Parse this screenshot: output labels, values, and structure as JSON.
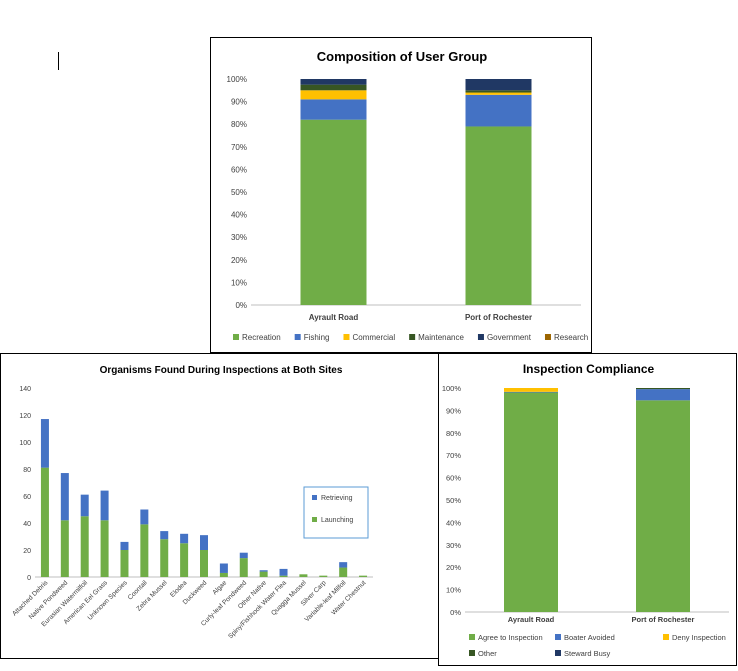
{
  "chart_data": [
    {
      "type": "bar",
      "stacked": true,
      "percent": true,
      "title": "Composition of User Group",
      "xlabel": "",
      "ylabel": "",
      "ylim": [
        0,
        100
      ],
      "yticks": [
        "0%",
        "10%",
        "20%",
        "30%",
        "40%",
        "50%",
        "60%",
        "70%",
        "80%",
        "90%",
        "100%"
      ],
      "categories": [
        "Ayrault Road",
        "Port of Rochester"
      ],
      "series": [
        {
          "name": "Recreation",
          "color": "#70ad47",
          "values": [
            82,
            79
          ]
        },
        {
          "name": "Fishing",
          "color": "#4472c4",
          "values": [
            9,
            14
          ]
        },
        {
          "name": "Commercial",
          "color": "#ffc000",
          "values": [
            4,
            1
          ]
        },
        {
          "name": "Maintenance",
          "color": "#375623",
          "values": [
            2.5,
            1
          ]
        },
        {
          "name": "Government",
          "color": "#203864",
          "values": [
            2.5,
            5
          ]
        },
        {
          "name": "Research",
          "color": "#9c6500",
          "values": [
            0,
            0
          ]
        }
      ],
      "legend": "bottom",
      "grid": false
    },
    {
      "type": "bar",
      "stacked": true,
      "title": "Organisms Found During Inspections at Both Sites",
      "xlabel": "",
      "ylabel": "",
      "ylim": [
        0,
        140
      ],
      "yticks": [
        "0",
        "20",
        "40",
        "60",
        "80",
        "100",
        "120",
        "140"
      ],
      "categories": [
        "Attached Debris",
        "Native Pondweed",
        "Eurasian Watermilfoil",
        "American Eel Grass",
        "Unknown Species",
        "Coontail",
        "Zebra Mussel",
        "Elodea",
        "Duckweed",
        "Algae",
        "Curly-leaf Pondweed",
        "Other Native",
        "Spiny/Fishhook Water Flea",
        "Quagga Mussel",
        "Silver Carp",
        "Variable-leaf Milfoil",
        "Water Chestnut"
      ],
      "series": [
        {
          "name": "Launching",
          "color": "#70ad47",
          "values": [
            81,
            42,
            45,
            42,
            20,
            39,
            28,
            25,
            20,
            3,
            14,
            4,
            1,
            2,
            1,
            7,
            1
          ]
        },
        {
          "name": "Retrieving",
          "color": "#4472c4",
          "values": [
            36,
            35,
            16,
            22,
            6,
            11,
            6,
            7,
            11,
            7,
            4,
            1,
            5,
            0,
            0,
            4,
            0
          ]
        }
      ],
      "legend": "right",
      "grid": false
    },
    {
      "type": "bar",
      "stacked": true,
      "percent": true,
      "title": "Inspection Compliance",
      "xlabel": "",
      "ylabel": "",
      "ylim": [
        0,
        100
      ],
      "yticks": [
        "0%",
        "10%",
        "20%",
        "30%",
        "40%",
        "50%",
        "60%",
        "70%",
        "80%",
        "90%",
        "100%"
      ],
      "categories": [
        "Ayrault Road",
        "Port of Rochester"
      ],
      "series": [
        {
          "name": "Agree to Inspection",
          "color": "#70ad47",
          "values": [
            98,
            94.5
          ]
        },
        {
          "name": "Boater Avoided",
          "color": "#4472c4",
          "values": [
            0.3,
            5
          ]
        },
        {
          "name": "Deny Inspection",
          "color": "#ffc000",
          "values": [
            1.7,
            0
          ]
        },
        {
          "name": "Other",
          "color": "#375623",
          "values": [
            0,
            0.5
          ]
        },
        {
          "name": "Steward Busy",
          "color": "#203864",
          "values": [
            0,
            0
          ]
        }
      ],
      "legend": "bottom",
      "grid": false
    }
  ]
}
